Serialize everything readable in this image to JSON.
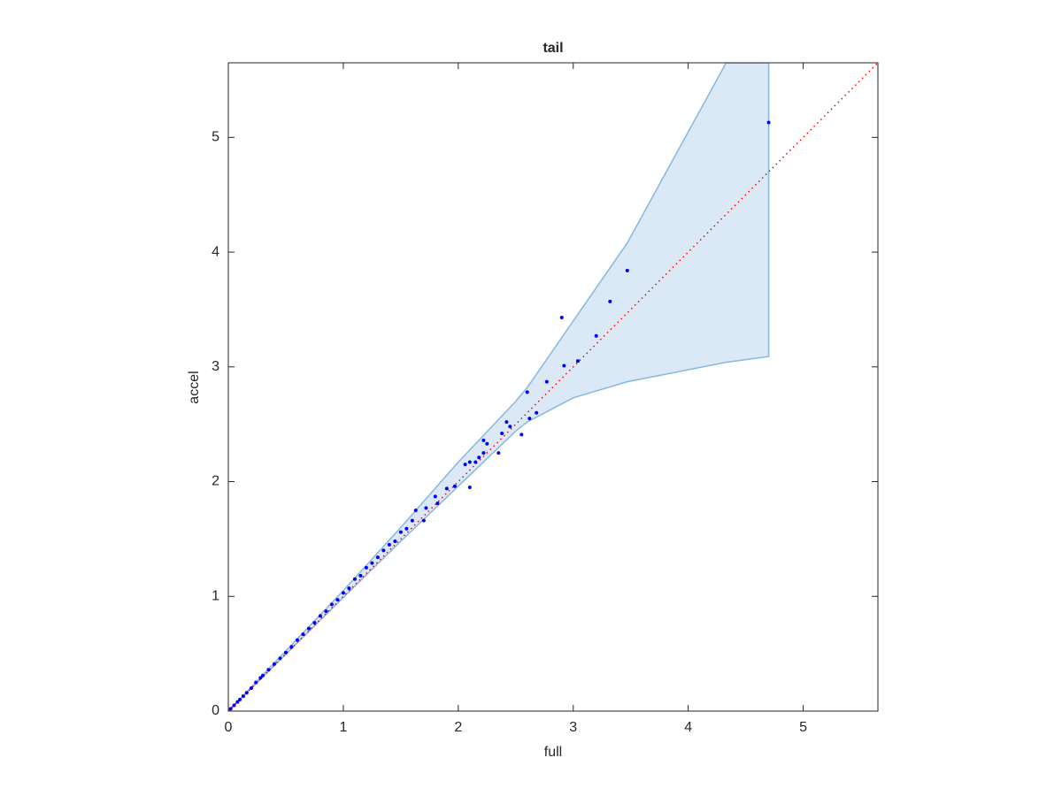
{
  "chart_data": {
    "type": "scatter",
    "title": "tail",
    "x_label": "full",
    "y_label": "accel",
    "xlim": [
      0,
      5.65
    ],
    "ylim": [
      0,
      5.65
    ],
    "xticks": [
      0,
      1,
      2,
      3,
      4,
      5
    ],
    "yticks": [
      0,
      1,
      2,
      3,
      4,
      5
    ],
    "band": {
      "color": "#a6cbe6",
      "edge_color": "#86b8df",
      "x": [
        0,
        1,
        1.5,
        2,
        2.5,
        2.6,
        3,
        3.47,
        4.33,
        4.7
      ],
      "upper": [
        0,
        1.05,
        1.6,
        2.17,
        2.7,
        2.82,
        3.4,
        4.08,
        5.65,
        5.65
      ],
      "lower": [
        0,
        0.99,
        1.48,
        1.96,
        2.44,
        2.52,
        2.73,
        2.87,
        3.04,
        3.09
      ]
    },
    "reference_line": {
      "color": "#ff0000",
      "x": [
        0,
        5.65
      ],
      "values": [
        0,
        5.65
      ]
    },
    "series": [
      {
        "color": "#0000ff",
        "x": [
          0.02,
          0.05,
          0.08,
          0.1,
          0.13,
          0.16,
          0.2,
          0.24,
          0.28,
          0.3,
          0.35,
          0.4,
          0.45,
          0.5,
          0.55,
          0.6,
          0.65,
          0.7,
          0.75,
          0.8,
          0.85,
          0.9,
          0.95,
          1.0,
          1.05,
          1.1,
          1.15,
          1.2,
          1.25,
          1.3,
          1.35,
          1.4,
          1.45,
          1.5,
          1.55,
          1.6,
          1.63,
          1.7,
          1.72,
          1.8,
          1.82,
          1.9,
          1.97,
          2.06,
          2.1,
          2.1,
          2.15,
          2.18,
          2.22,
          2.22,
          2.25,
          2.35,
          2.38,
          2.42,
          2.45,
          2.55,
          2.6,
          2.62,
          2.68,
          2.77,
          2.9,
          2.92,
          3.04,
          3.2,
          3.32,
          3.47,
          4.7
        ],
        "values": [
          0.02,
          0.05,
          0.08,
          0.1,
          0.13,
          0.16,
          0.2,
          0.25,
          0.29,
          0.31,
          0.36,
          0.41,
          0.46,
          0.51,
          0.56,
          0.62,
          0.67,
          0.72,
          0.77,
          0.83,
          0.87,
          0.93,
          0.97,
          1.03,
          1.07,
          1.15,
          1.18,
          1.25,
          1.29,
          1.34,
          1.4,
          1.45,
          1.48,
          1.56,
          1.59,
          1.66,
          1.75,
          1.66,
          1.77,
          1.87,
          1.81,
          1.94,
          1.96,
          2.15,
          1.95,
          2.17,
          2.17,
          2.21,
          2.36,
          2.25,
          2.33,
          2.25,
          2.42,
          2.52,
          2.48,
          2.41,
          2.78,
          2.55,
          2.6,
          2.87,
          3.43,
          3.01,
          3.05,
          3.27,
          3.57,
          3.84,
          5.13
        ]
      }
    ]
  }
}
